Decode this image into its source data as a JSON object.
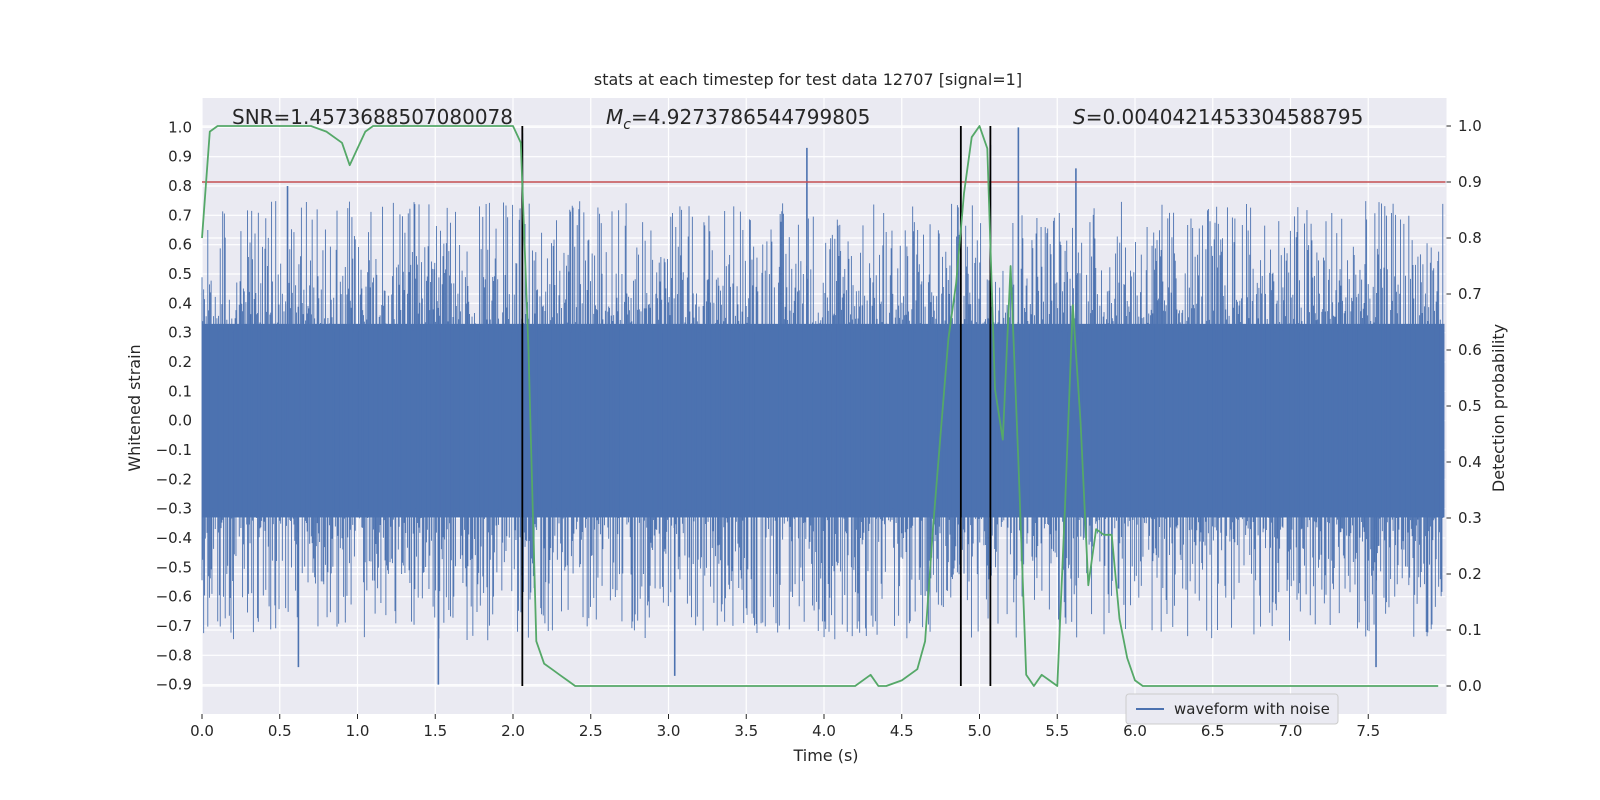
{
  "chart_data": {
    "type": "line",
    "title": "stats at each timestep for test data 12707 [signal=1]",
    "xlabel": "Time (s)",
    "ylabel": "Whitened strain",
    "y2label": "Detection probability",
    "xlim": [
      0.0,
      8.0
    ],
    "ylim": [
      -1.0,
      1.1
    ],
    "y2lim": [
      -0.05,
      1.05
    ],
    "x_ticks": [
      0.0,
      0.5,
      1.0,
      1.5,
      2.0,
      2.5,
      3.0,
      3.5,
      4.0,
      4.5,
      5.0,
      5.5,
      6.0,
      6.5,
      7.0,
      7.5
    ],
    "x_tick_labels": [
      "0.0",
      "0.5",
      "1.0",
      "1.5",
      "2.0",
      "2.5",
      "3.0",
      "3.5",
      "4.0",
      "4.5",
      "5.0",
      "5.5",
      "6.0",
      "6.5",
      "7.0",
      "7.5"
    ],
    "y_ticks": [
      1.0,
      0.9,
      0.8,
      0.7,
      0.6,
      0.5,
      0.4,
      0.3,
      0.2,
      0.1,
      0.0,
      -0.1,
      -0.2,
      -0.3,
      -0.4,
      -0.5,
      -0.6,
      -0.7,
      -0.8,
      -0.9
    ],
    "y_tick_labels": [
      "1.0",
      "0.9",
      "0.8",
      "0.7",
      "0.6",
      "0.5",
      "0.4",
      "0.3",
      "0.2",
      "0.1",
      "0.0",
      "−0.1",
      "−0.2",
      "−0.3",
      "−0.4",
      "−0.5",
      "−0.6",
      "−0.7",
      "−0.8",
      "−0.9"
    ],
    "y2_ticks": [
      1.0,
      0.9,
      0.8,
      0.7,
      0.6,
      0.5,
      0.4,
      0.3,
      0.2,
      0.1,
      0.0
    ],
    "y2_tick_labels": [
      "1.0",
      "0.9",
      "0.8",
      "0.7",
      "0.6",
      "0.5",
      "0.4",
      "0.3",
      "0.2",
      "0.1",
      "0.0"
    ],
    "grid": true,
    "legend_position": "lower-right",
    "annotations": {
      "snr": "SNR=1.4573688507080078",
      "mc_symbol": "M",
      "mc_subscript": "c",
      "mc_value": "=4.9273786544799805",
      "s_symbol": "S",
      "s_value": "=0.0040421453304588795"
    },
    "series": [
      {
        "name": "waveform with noise",
        "kind": "noise-band",
        "color": "#4c72b0",
        "dense_band": [
          -0.33,
          0.33
        ],
        "spike_range": [
          -0.9,
          0.93
        ],
        "max_value": 1.0,
        "min_value": -0.9,
        "notable_peaks": [
          {
            "x": 2.06,
            "y": 0.98
          },
          {
            "x": 3.89,
            "y": 0.93
          },
          {
            "x": 5.07,
            "y": 0.94
          },
          {
            "x": 5.25,
            "y": 1.0
          },
          {
            "x": 5.62,
            "y": 0.86
          },
          {
            "x": 0.55,
            "y": 0.8
          }
        ],
        "notable_troughs": [
          {
            "x": 1.52,
            "y": -0.9
          },
          {
            "x": 3.04,
            "y": -0.87
          },
          {
            "x": 0.62,
            "y": -0.84
          },
          {
            "x": 7.55,
            "y": -0.84
          }
        ]
      },
      {
        "kind": "probability-curve",
        "color": "#55a868",
        "axis": "y2",
        "x": [
          0.0,
          0.05,
          0.1,
          0.2,
          0.3,
          0.4,
          0.5,
          0.6,
          0.7,
          0.8,
          0.9,
          0.95,
          1.0,
          1.05,
          1.1,
          1.15,
          1.2,
          1.3,
          1.5,
          1.7,
          1.9,
          2.0,
          2.05,
          2.1,
          2.15,
          2.2,
          2.25,
          2.3,
          2.35,
          2.4,
          2.5,
          2.7,
          3.0,
          3.2,
          3.5,
          3.8,
          4.0,
          4.2,
          4.3,
          4.35,
          4.4,
          4.5,
          4.6,
          4.65,
          4.7,
          4.75,
          4.8,
          4.85,
          4.9,
          4.95,
          5.0,
          5.05,
          5.1,
          5.15,
          5.2,
          5.25,
          5.3,
          5.35,
          5.4,
          5.45,
          5.5,
          5.55,
          5.6,
          5.65,
          5.7,
          5.75,
          5.8,
          5.85,
          5.9,
          5.95,
          6.0,
          6.05,
          6.1,
          6.15,
          6.2,
          6.5,
          7.0,
          7.5,
          7.95
        ],
        "y": [
          0.8,
          0.99,
          1.0,
          1.0,
          1.0,
          1.0,
          1.0,
          1.0,
          1.0,
          0.99,
          0.97,
          0.93,
          0.96,
          0.99,
          1.0,
          1.0,
          1.0,
          1.0,
          1.0,
          1.0,
          1.0,
          1.0,
          0.97,
          0.6,
          0.08,
          0.04,
          0.03,
          0.02,
          0.01,
          0.0,
          0.0,
          0.0,
          0.0,
          0.0,
          0.0,
          0.0,
          0.0,
          0.0,
          0.02,
          0.0,
          0.0,
          0.01,
          0.03,
          0.08,
          0.28,
          0.45,
          0.62,
          0.72,
          0.88,
          0.98,
          1.0,
          0.96,
          0.53,
          0.44,
          0.75,
          0.4,
          0.02,
          0.0,
          0.02,
          0.01,
          0.0,
          0.32,
          0.68,
          0.47,
          0.18,
          0.28,
          0.27,
          0.27,
          0.12,
          0.05,
          0.01,
          0.0,
          0.0,
          0.0,
          0.0,
          0.0,
          0.0,
          0.0,
          0.0
        ]
      },
      {
        "kind": "threshold",
        "color": "#c44e52",
        "axis": "y2",
        "value": 0.9
      }
    ],
    "vertical_lines": [
      {
        "x": 2.06,
        "y2_range": [
          0.0,
          1.0
        ],
        "color": "#000000"
      },
      {
        "x": 4.88,
        "y2_range": [
          0.0,
          1.0
        ],
        "color": "#000000"
      },
      {
        "x": 5.07,
        "y2_range": [
          0.0,
          1.0
        ],
        "color": "#000000"
      }
    ]
  }
}
